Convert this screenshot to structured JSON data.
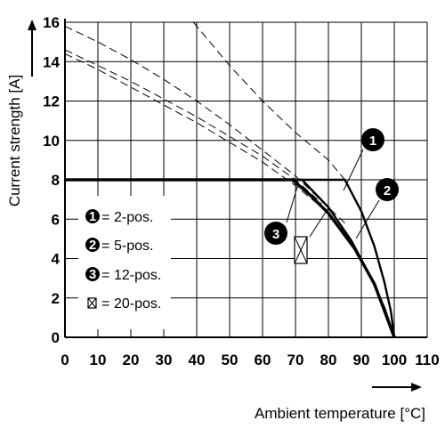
{
  "chart_data": {
    "type": "line",
    "xlabel": "Ambient temperature [°C]",
    "ylabel": "Current strength [A]",
    "xlim": [
      0,
      110
    ],
    "ylim": [
      0,
      16
    ],
    "xticks": [
      0,
      10,
      20,
      30,
      40,
      50,
      60,
      70,
      80,
      90,
      100,
      110
    ],
    "yticks": [
      0,
      2,
      4,
      6,
      8,
      10,
      12,
      14,
      16
    ],
    "grid": true,
    "legend_position": "bottom-left",
    "series": [
      {
        "name": "2-pos.",
        "marker": "1",
        "style": "solid",
        "x": [
          0,
          85,
          90,
          94,
          97,
          99,
          100
        ],
        "y": [
          8,
          8,
          6.4,
          4.6,
          2.8,
          1.3,
          0
        ]
      },
      {
        "name": "5-pos.",
        "marker": "2",
        "style": "solid",
        "x": [
          0,
          72,
          80,
          87,
          93,
          97,
          100
        ],
        "y": [
          8,
          8,
          6.6,
          4.9,
          3.0,
          1.5,
          0
        ]
      },
      {
        "name": "12-pos.",
        "marker": "3",
        "style": "solid",
        "x": [
          0,
          69,
          74,
          80,
          88,
          94,
          100
        ],
        "y": [
          8,
          8,
          7.3,
          6.3,
          4.5,
          2.7,
          0
        ]
      },
      {
        "name": "20-pos.",
        "marker": "☒",
        "style": "solid",
        "x": [
          0,
          69,
          74,
          80,
          88,
          94,
          100
        ],
        "y": [
          8,
          8,
          7.3,
          6.3,
          4.5,
          2.7,
          0
        ]
      }
    ],
    "dashed_curves": [
      {
        "x": [
          0,
          10,
          20,
          30,
          40,
          50,
          60,
          70,
          85
        ],
        "y": [
          15.8,
          15.0,
          14.1,
          13.1,
          12.0,
          10.8,
          9.5,
          8.2,
          5.8
        ]
      },
      {
        "x": [
          0,
          10,
          20,
          30,
          40,
          50,
          60,
          70,
          78
        ],
        "y": [
          14.6,
          13.8,
          13.0,
          12.1,
          11.2,
          10.2,
          9.2,
          8.0,
          6.8
        ]
      },
      {
        "x": [
          0,
          10,
          20,
          30,
          40,
          50,
          60,
          70,
          78
        ],
        "y": [
          14.4,
          13.6,
          12.7,
          11.8,
          10.9,
          9.9,
          8.9,
          7.7,
          6.6
        ]
      },
      {
        "x": [
          39,
          50,
          60,
          70,
          80,
          85
        ],
        "y": [
          16,
          13.8,
          12.0,
          10.4,
          9.0,
          8.0
        ]
      }
    ]
  }
}
